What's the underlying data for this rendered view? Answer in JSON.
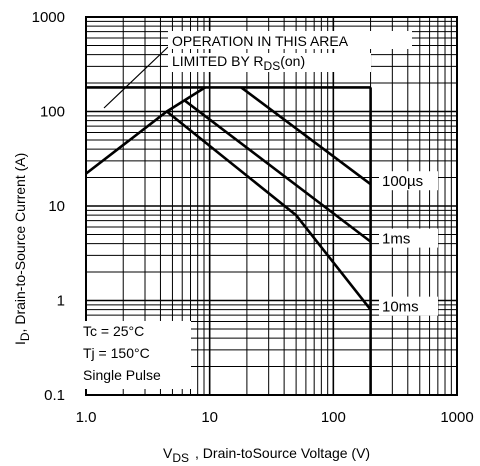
{
  "chart_data": {
    "type": "line",
    "x_scale": "log",
    "y_scale": "log",
    "xlim": [
      1,
      1000
    ],
    "ylim": [
      0.1,
      1000
    ],
    "grid": true,
    "x_ticks": [
      "1.0",
      "10",
      "100",
      "1000"
    ],
    "y_ticks": [
      "0.1",
      "1",
      "10",
      "100",
      "1000"
    ],
    "xlabel": {
      "main": "V",
      "sub": "DS",
      "rest": ", Drain-toSource Voltage (V)"
    },
    "ylabel": {
      "main": "I",
      "sub": "D",
      "rest": ",  Drain-to-Source Current (A)"
    },
    "annotation": {
      "line1": "OPERATION IN THIS AREA",
      "line2_main": "LIMITED BY R",
      "line2_sub": "DS",
      "line2_rest": "(on)"
    },
    "conditions": [
      "Tc = 25°C",
      "Tj = 150°C",
      "Single Pulse"
    ],
    "series": [
      {
        "name": "",
        "role": "rds_on_limit",
        "points": [
          [
            1.0,
            22
          ],
          [
            4.5,
            100
          ],
          [
            9.2,
            180
          ]
        ]
      },
      {
        "name": "",
        "role": "current_limit",
        "points": [
          [
            1.0,
            180
          ],
          [
            200,
            180
          ]
        ]
      },
      {
        "name": "",
        "role": "voltage_limit",
        "points": [
          [
            200,
            180
          ],
          [
            200,
            0.1
          ]
        ]
      },
      {
        "name": "100µs",
        "points": [
          [
            18,
            180
          ],
          [
            200,
            17
          ]
        ]
      },
      {
        "name": "1ms",
        "points": [
          [
            6.3,
            130
          ],
          [
            200,
            4.2
          ]
        ]
      },
      {
        "name": "10ms",
        "points": [
          [
            4.5,
            100
          ],
          [
            50,
            8
          ],
          [
            200,
            0.8
          ]
        ]
      }
    ]
  }
}
